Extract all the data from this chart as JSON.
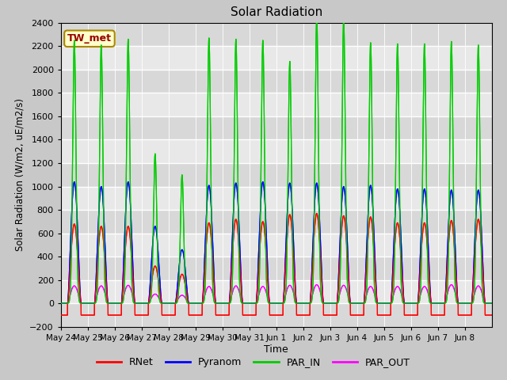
{
  "title": "Solar Radiation",
  "xlabel": "Time",
  "ylabel": "Solar Radiation (W/m2, uE/m2/s)",
  "ylim": [
    -200,
    2400
  ],
  "yticks": [
    -200,
    0,
    200,
    400,
    600,
    800,
    1000,
    1200,
    1400,
    1600,
    1800,
    2000,
    2200,
    2400
  ],
  "colors": {
    "RNet": "#ff0000",
    "Pyranom": "#0000ff",
    "PAR_IN": "#00cc00",
    "PAR_OUT": "#ff00ff"
  },
  "legend_label": "TW_met",
  "legend_label_color": "#990000",
  "legend_label_bg": "#ffffcc",
  "plot_bg": "#e8e8e8",
  "tick_labels": [
    "May 24",
    "May 25",
    "May 26",
    "May 27",
    "May 28",
    "May 29",
    "May 30",
    "May 31",
    "Jun 1",
    "Jun 2",
    "Jun 3",
    "Jun 4",
    "Jun 5",
    "Jun 6",
    "Jun 7",
    "Jun 8"
  ],
  "n_days": 16,
  "points_per_day": 288,
  "par_in_peaks": [
    2250,
    2210,
    2260,
    1280,
    1100,
    2270,
    2260,
    2250,
    2070,
    2450,
    2430,
    2230,
    2220,
    2220,
    2240,
    2210
  ],
  "pyranom_peaks": [
    1040,
    1000,
    1040,
    660,
    460,
    1010,
    1030,
    1040,
    1030,
    1030,
    1000,
    1010,
    980,
    980,
    970,
    970
  ],
  "rnet_peaks": [
    680,
    660,
    660,
    320,
    250,
    690,
    720,
    700,
    760,
    770,
    750,
    740,
    690,
    690,
    710,
    720
  ],
  "par_out_peaks": [
    150,
    150,
    155,
    80,
    70,
    145,
    150,
    145,
    155,
    160,
    155,
    145,
    145,
    145,
    160,
    150
  ],
  "night_rnet": -100,
  "day_start": 0.25,
  "day_end": 0.75
}
